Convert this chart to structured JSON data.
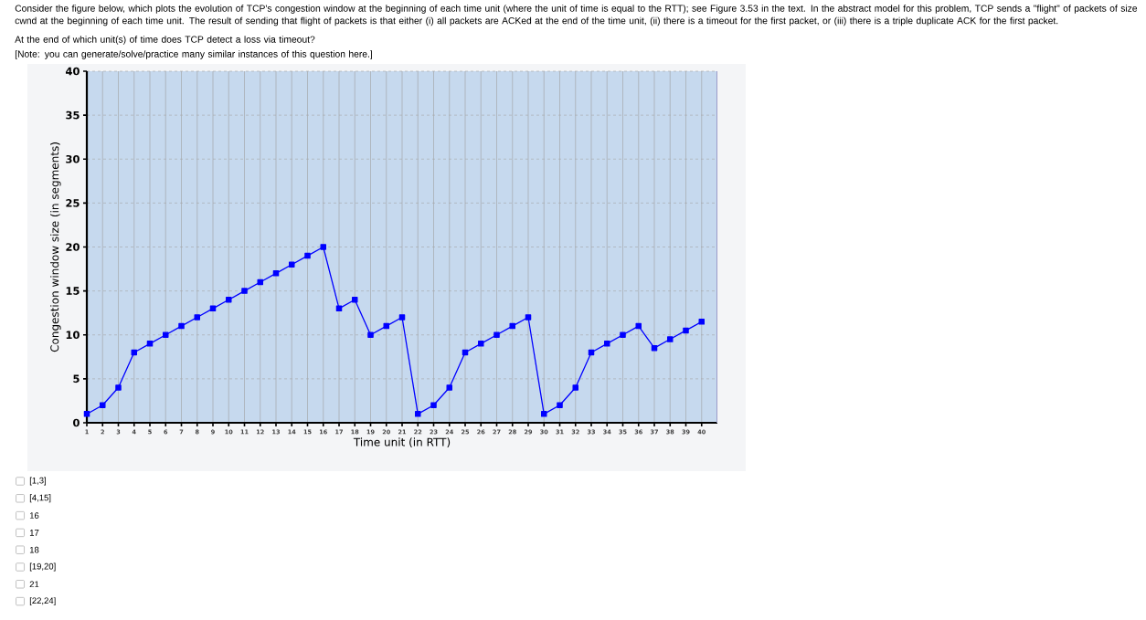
{
  "chart_data": {
    "type": "line",
    "annotations": [
      "Consider the figure below, which plots the evolution of TCP's congestion window at the beginning of each time unit (where the unit of time is equal to the RTT); see Figure 3.53 in the text. In the abstract model for this problem, TCP sends a \"flight\" of packets of size cwnd at the beginning of each time unit. The result of sending that flight of packets is that either (i) all packets are ACKed at the end of the time unit, (ii) there is a timeout for the first packet, or (iii) there is a triple duplicate ACK for the first packet.",
      "At the end of which unit(s) of time does TCP detect a loss via timeout?",
      "[Note: you can generate/solve/practice many similar instances of this question here.]",
      "[1,3]",
      "[4,15]",
      "16",
      "17",
      "18",
      "[19,20]",
      "21",
      "[22,24]"
    ],
    "xlabel": "Time unit (in RTT)",
    "ylabel": "Congestion window size (in segments)",
    "x": [
      1,
      2,
      3,
      4,
      5,
      6,
      7,
      8,
      9,
      10,
      11,
      12,
      13,
      14,
      15,
      16,
      17,
      18,
      19,
      20,
      21,
      22,
      23,
      24,
      25,
      26,
      27,
      28,
      29,
      30,
      31,
      32,
      33,
      34,
      35,
      36,
      37,
      38,
      39,
      40
    ],
    "series": [
      {
        "color": "#0000ff",
        "values": [
          1,
          2,
          4,
          8,
          9,
          10,
          11,
          12,
          13,
          14,
          15,
          16,
          17,
          18,
          19,
          20,
          13,
          14,
          10,
          11,
          12,
          1,
          2,
          4,
          8,
          9,
          10,
          11,
          12,
          1,
          2,
          4,
          8,
          9,
          10,
          11,
          8.5,
          9.5,
          10.5,
          11.5
        ]
      }
    ],
    "xlim": [
      1,
      41
    ],
    "xticks": [
      1,
      2,
      3,
      4,
      5,
      6,
      7,
      8,
      9,
      10,
      11,
      12,
      13,
      14,
      15,
      16,
      17,
      18,
      19,
      20,
      21,
      22,
      23,
      24,
      25,
      26,
      27,
      28,
      29,
      30,
      31,
      32,
      33,
      34,
      35,
      36,
      37,
      38,
      39,
      40
    ],
    "ylim": [
      0,
      40
    ],
    "yticks": [
      0,
      5,
      10,
      15,
      20,
      25,
      30,
      35,
      40
    ],
    "grid": true,
    "marker": "square",
    "line_style": "solid"
  }
}
